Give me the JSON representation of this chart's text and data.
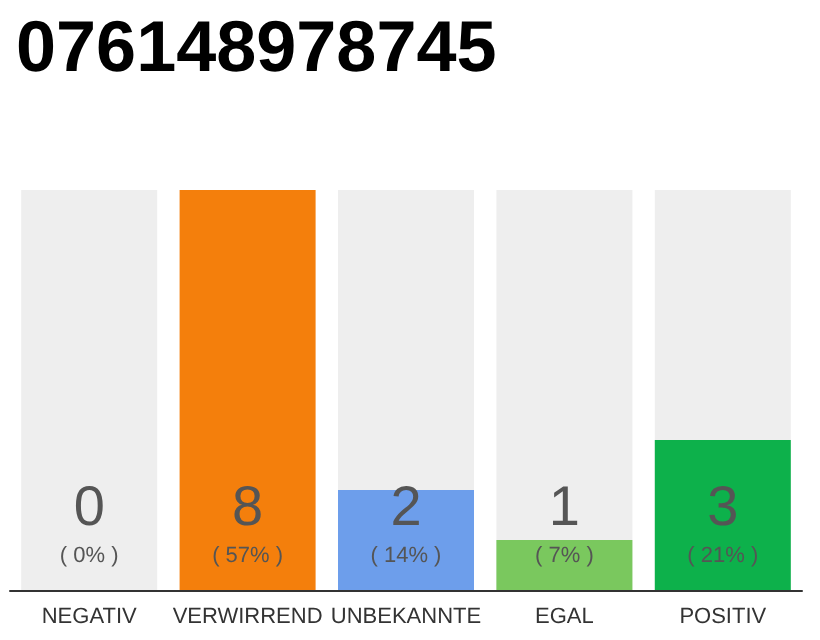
{
  "chart_data": {
    "type": "bar",
    "title": "076148978745",
    "categories": [
      "NEGATIV",
      "VERWIRREND",
      "UNBEKANNTE",
      "EGAL",
      "POSITIV"
    ],
    "values": [
      0,
      8,
      2,
      1,
      3
    ],
    "colors": [
      "#e2001a",
      "#f47f0c",
      "#6d9eeb",
      "#7ac85e",
      "#0db14b"
    ],
    "value_labels": [
      "0\n( 0% )",
      "8\n( 57% )",
      "2\n( 14% )",
      "1\n( 7% )",
      "3\n( 21% )"
    ],
    "bands": [
      {
        "axis": "x",
        "from": "NEGATIV",
        "to": "NEGATIV",
        "color": "#eeeeee"
      },
      {
        "axis": "x",
        "from": "UNBEKANNTE",
        "to": "UNBEKANNTE",
        "color": "#eeeeee"
      },
      {
        "axis": "x",
        "from": "EGAL",
        "to": "EGAL",
        "color": "#eeeeee"
      },
      {
        "axis": "x",
        "from": "POSITIV",
        "to": "POSITIV",
        "color": "#eeeeee"
      }
    ]
  }
}
